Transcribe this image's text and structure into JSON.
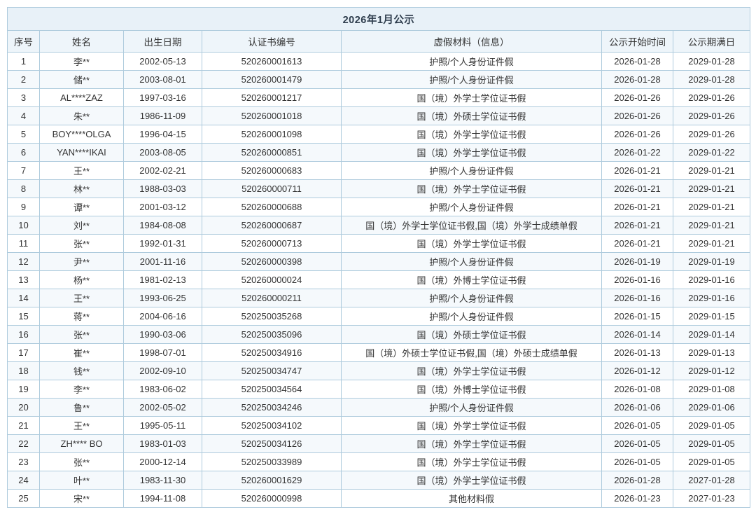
{
  "colors": {
    "border": "#aecbdd",
    "title_bg": "#e8f1f8",
    "header_bg": "#eef5fa",
    "stripe": "#f5f9fc",
    "text": "#333333"
  },
  "table": {
    "title": "2026年1月公示",
    "headers": [
      "序号",
      "姓名",
      "出生日期",
      "认证书编号",
      "虚假材料（信息）",
      "公示开始时间",
      "公示期满日"
    ],
    "column_keys": [
      "index",
      "name",
      "birth-date",
      "cert-number",
      "fake-material",
      "start-date",
      "expiry-date"
    ],
    "rows": [
      [
        "1",
        "李**",
        "2002-05-13",
        "520260001613",
        "护照/个人身份证件假",
        "2026-01-28",
        "2029-01-28"
      ],
      [
        "2",
        "储**",
        "2003-08-01",
        "520260001479",
        "护照/个人身份证件假",
        "2026-01-28",
        "2029-01-28"
      ],
      [
        "3",
        "AL****ZAZ",
        "1997-03-16",
        "520260001217",
        "国（境）外学士学位证书假",
        "2026-01-26",
        "2029-01-26"
      ],
      [
        "4",
        "朱**",
        "1986-11-09",
        "520260001018",
        "国（境）外硕士学位证书假",
        "2026-01-26",
        "2029-01-26"
      ],
      [
        "5",
        "BOY****OLGA",
        "1996-04-15",
        "520260001098",
        "国（境）外学士学位证书假",
        "2026-01-26",
        "2029-01-26"
      ],
      [
        "6",
        "YAN****IKAI",
        "2003-08-05",
        "520260000851",
        "国（境）外学士学位证书假",
        "2026-01-22",
        "2029-01-22"
      ],
      [
        "7",
        "王**",
        "2002-02-21",
        "520260000683",
        "护照/个人身份证件假",
        "2026-01-21",
        "2029-01-21"
      ],
      [
        "8",
        "林**",
        "1988-03-03",
        "520260000711",
        "国（境）外学士学位证书假",
        "2026-01-21",
        "2029-01-21"
      ],
      [
        "9",
        "谭**",
        "2001-03-12",
        "520260000688",
        "护照/个人身份证件假",
        "2026-01-21",
        "2029-01-21"
      ],
      [
        "10",
        "刘**",
        "1984-08-08",
        "520260000687",
        "国（境）外学士学位证书假,国（境）外学士成绩单假",
        "2026-01-21",
        "2029-01-21"
      ],
      [
        "11",
        "张**",
        "1992-01-31",
        "520260000713",
        "国（境）外学士学位证书假",
        "2026-01-21",
        "2029-01-21"
      ],
      [
        "12",
        "尹**",
        "2001-11-16",
        "520260000398",
        "护照/个人身份证件假",
        "2026-01-19",
        "2029-01-19"
      ],
      [
        "13",
        "杨**",
        "1981-02-13",
        "520260000024",
        "国（境）外博士学位证书假",
        "2026-01-16",
        "2029-01-16"
      ],
      [
        "14",
        "王**",
        "1993-06-25",
        "520260000211",
        "护照/个人身份证件假",
        "2026-01-16",
        "2029-01-16"
      ],
      [
        "15",
        "蒋**",
        "2004-06-16",
        "520250035268",
        "护照/个人身份证件假",
        "2026-01-15",
        "2029-01-15"
      ],
      [
        "16",
        "张**",
        "1990-03-06",
        "520250035096",
        "国（境）外硕士学位证书假",
        "2026-01-14",
        "2029-01-14"
      ],
      [
        "17",
        "崔**",
        "1998-07-01",
        "520250034916",
        "国（境）外硕士学位证书假,国（境）外硕士成绩单假",
        "2026-01-13",
        "2029-01-13"
      ],
      [
        "18",
        "钱**",
        "2002-09-10",
        "520250034747",
        "国（境）外学士学位证书假",
        "2026-01-12",
        "2029-01-12"
      ],
      [
        "19",
        "李**",
        "1983-06-02",
        "520250034564",
        "国（境）外博士学位证书假",
        "2026-01-08",
        "2029-01-08"
      ],
      [
        "20",
        "鲁**",
        "2002-05-02",
        "520250034246",
        "护照/个人身份证件假",
        "2026-01-06",
        "2029-01-06"
      ],
      [
        "21",
        "王**",
        "1995-05-11",
        "520250034102",
        "国（境）外学士学位证书假",
        "2026-01-05",
        "2029-01-05"
      ],
      [
        "22",
        "ZH**** BO",
        "1983-01-03",
        "520250034126",
        "国（境）外学士学位证书假",
        "2026-01-05",
        "2029-01-05"
      ],
      [
        "23",
        "张**",
        "2000-12-14",
        "520250033989",
        "国（境）外学士学位证书假",
        "2026-01-05",
        "2029-01-05"
      ],
      [
        "24",
        "叶**",
        "1983-11-30",
        "520260001629",
        "国（境）外学士学位证书假",
        "2026-01-28",
        "2027-01-28"
      ],
      [
        "25",
        "宋**",
        "1994-11-08",
        "520260000998",
        "其他材料假",
        "2026-01-23",
        "2027-01-23"
      ]
    ]
  }
}
